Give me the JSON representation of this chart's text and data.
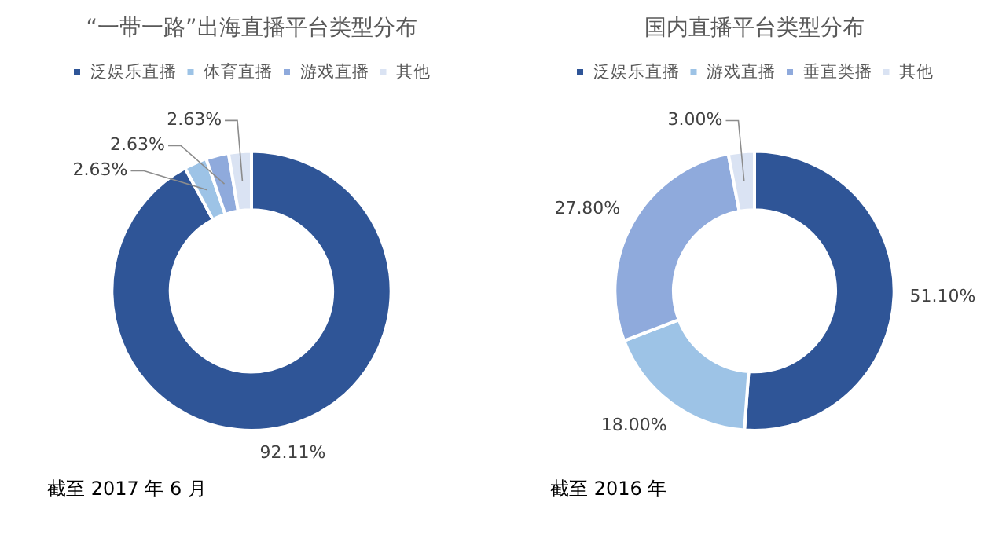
{
  "chart_data": [
    {
      "type": "donut",
      "title": "“一带一路”出海直播平台类型分布",
      "categories": [
        "泛娱乐直播",
        "体育直播",
        "游戏直播",
        "其他"
      ],
      "values": [
        92.11,
        2.63,
        2.63,
        2.63
      ],
      "value_labels": [
        "92.11%",
        "2.63%",
        "2.63%",
        "2.63%"
      ],
      "colors": [
        "#2f5597",
        "#9dc3e6",
        "#8faadc",
        "#dae3f3"
      ],
      "legend": "top",
      "annotations": [
        "截至 2017 年 6 月"
      ]
    },
    {
      "type": "donut",
      "title": "国内直播平台类型分布",
      "categories": [
        "泛娱乐直播",
        "游戏直播",
        "垂直类播",
        "其他"
      ],
      "values": [
        51.1,
        18.0,
        27.8,
        3.0
      ],
      "value_labels": [
        "51.10%",
        "18.00%",
        "27.80%",
        "3.00%"
      ],
      "colors": [
        "#2f5597",
        "#9dc3e6",
        "#8faadc",
        "#dae3f3"
      ],
      "legend": "top",
      "annotations": [
        "截至 2016 年"
      ]
    }
  ]
}
